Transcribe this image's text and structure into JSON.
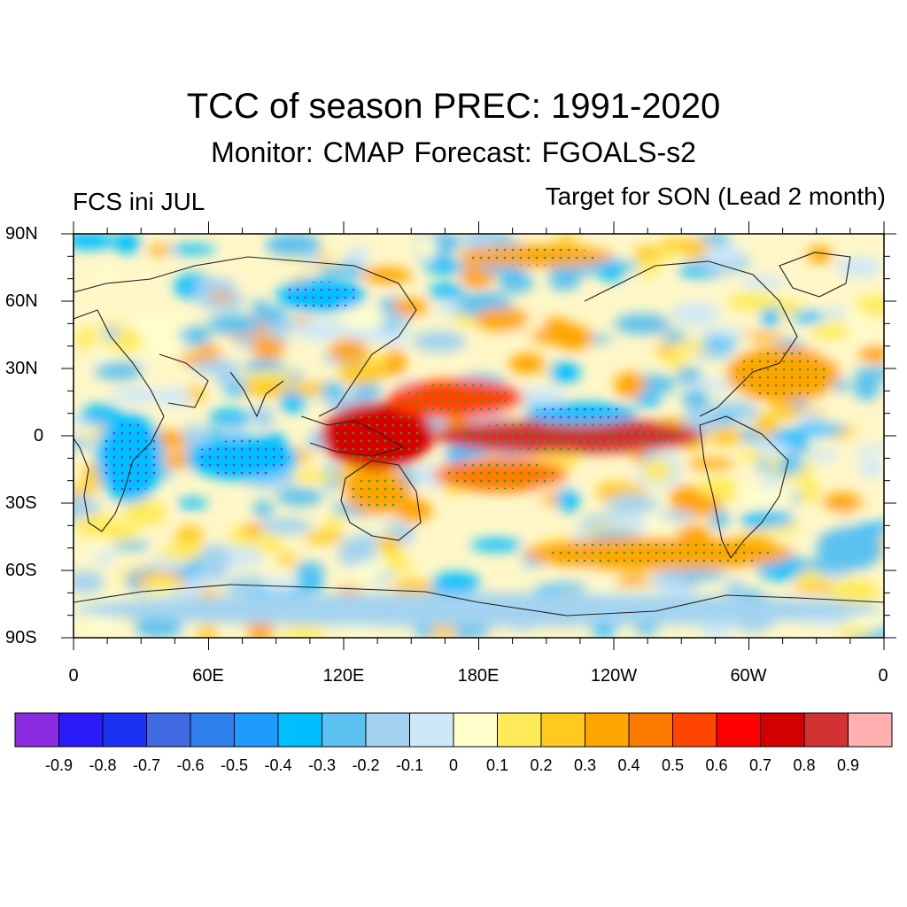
{
  "title": "TCC of season PREC: 1991-2020",
  "subtitle": "Monitor: CMAP   Forecast: FGOALS-s2",
  "left_label": "FCS ini JUL",
  "right_label": "Target for SON (Lead 2 month)",
  "lat_ticks": [
    "90N",
    "60N",
    "30N",
    "0",
    "30S",
    "60S",
    "90S"
  ],
  "lon_ticks": [
    "0",
    "60E",
    "120E",
    "180E",
    "120W",
    "60W",
    "0"
  ],
  "colorbar": {
    "labels": [
      "-0.9",
      "-0.8",
      "-0.7",
      "-0.6",
      "-0.5",
      "-0.4",
      "-0.3",
      "-0.2",
      "-0.1",
      "0",
      "0.1",
      "0.2",
      "0.3",
      "0.4",
      "0.5",
      "0.6",
      "0.7",
      "0.8",
      "0.9"
    ],
    "colors": [
      "#8a2be2",
      "#2a1af7",
      "#1c32f2",
      "#4169e1",
      "#2f7fec",
      "#1e9bff",
      "#00bfff",
      "#5cc1f0",
      "#a3d3f0",
      "#cfe8f7",
      "#ffffcc",
      "#ffeb5a",
      "#ffc91f",
      "#ffa500",
      "#ff7b00",
      "#ff4500",
      "#ff0000",
      "#d40000",
      "#d23232",
      "#ffb0b0"
    ]
  },
  "map_data": {
    "type": "heatmap",
    "variable": "TCC of season PREC",
    "period": "1991-2020",
    "value_range": [
      -0.9,
      0.9
    ],
    "lat_range": [
      -90,
      90
    ],
    "lon_range": [
      0,
      360
    ],
    "features": [
      {
        "region": "Equatorial central-eastern Pacific",
        "lon": [
          160,
          280
        ],
        "lat": [
          -8,
          8
        ],
        "value": 0.8
      },
      {
        "region": "Maritime Continent / western Pacific",
        "lon": [
          110,
          160
        ],
        "lat": [
          -15,
          15
        ],
        "value": 0.75
      },
      {
        "region": "Northwest Pacific",
        "lon": [
          140,
          200
        ],
        "lat": [
          8,
          25
        ],
        "value": 0.55
      },
      {
        "region": "South Pacific convergence zone",
        "lon": [
          160,
          220
        ],
        "lat": [
          -25,
          -10
        ],
        "value": 0.45
      },
      {
        "region": "Australia",
        "lon": [
          120,
          150
        ],
        "lat": [
          -35,
          -15
        ],
        "value": 0.35
      },
      {
        "region": "Southern Ocean band",
        "lon": [
          200,
          320
        ],
        "lat": [
          -60,
          -45
        ],
        "value": 0.35
      },
      {
        "region": "North Atlantic",
        "lon": [
          290,
          340
        ],
        "lat": [
          15,
          40
        ],
        "value": 0.3
      },
      {
        "region": "Arctic Pacific sector",
        "lon": [
          170,
          240
        ],
        "lat": [
          75,
          85
        ],
        "value": 0.4
      },
      {
        "region": "Indian Ocean",
        "lon": [
          50,
          100
        ],
        "lat": [
          -20,
          0
        ],
        "value": -0.35
      },
      {
        "region": "Africa",
        "lon": [
          10,
          40
        ],
        "lat": [
          -30,
          10
        ],
        "value": -0.3
      },
      {
        "region": "Siberia",
        "lon": [
          90,
          130
        ],
        "lat": [
          55,
          70
        ],
        "value": -0.3
      },
      {
        "region": "North Pacific subtropics",
        "lon": [
          200,
          250
        ],
        "lat": [
          5,
          15
        ],
        "value": -0.35
      },
      {
        "region": "South Atlantic",
        "lon": [
          330,
          360
        ],
        "lat": [
          -60,
          -40
        ],
        "value": -0.25
      },
      {
        "region": "Antarctica coast",
        "lon": [
          0,
          360
        ],
        "lat": [
          -85,
          -70
        ],
        "value": -0.2
      }
    ]
  }
}
